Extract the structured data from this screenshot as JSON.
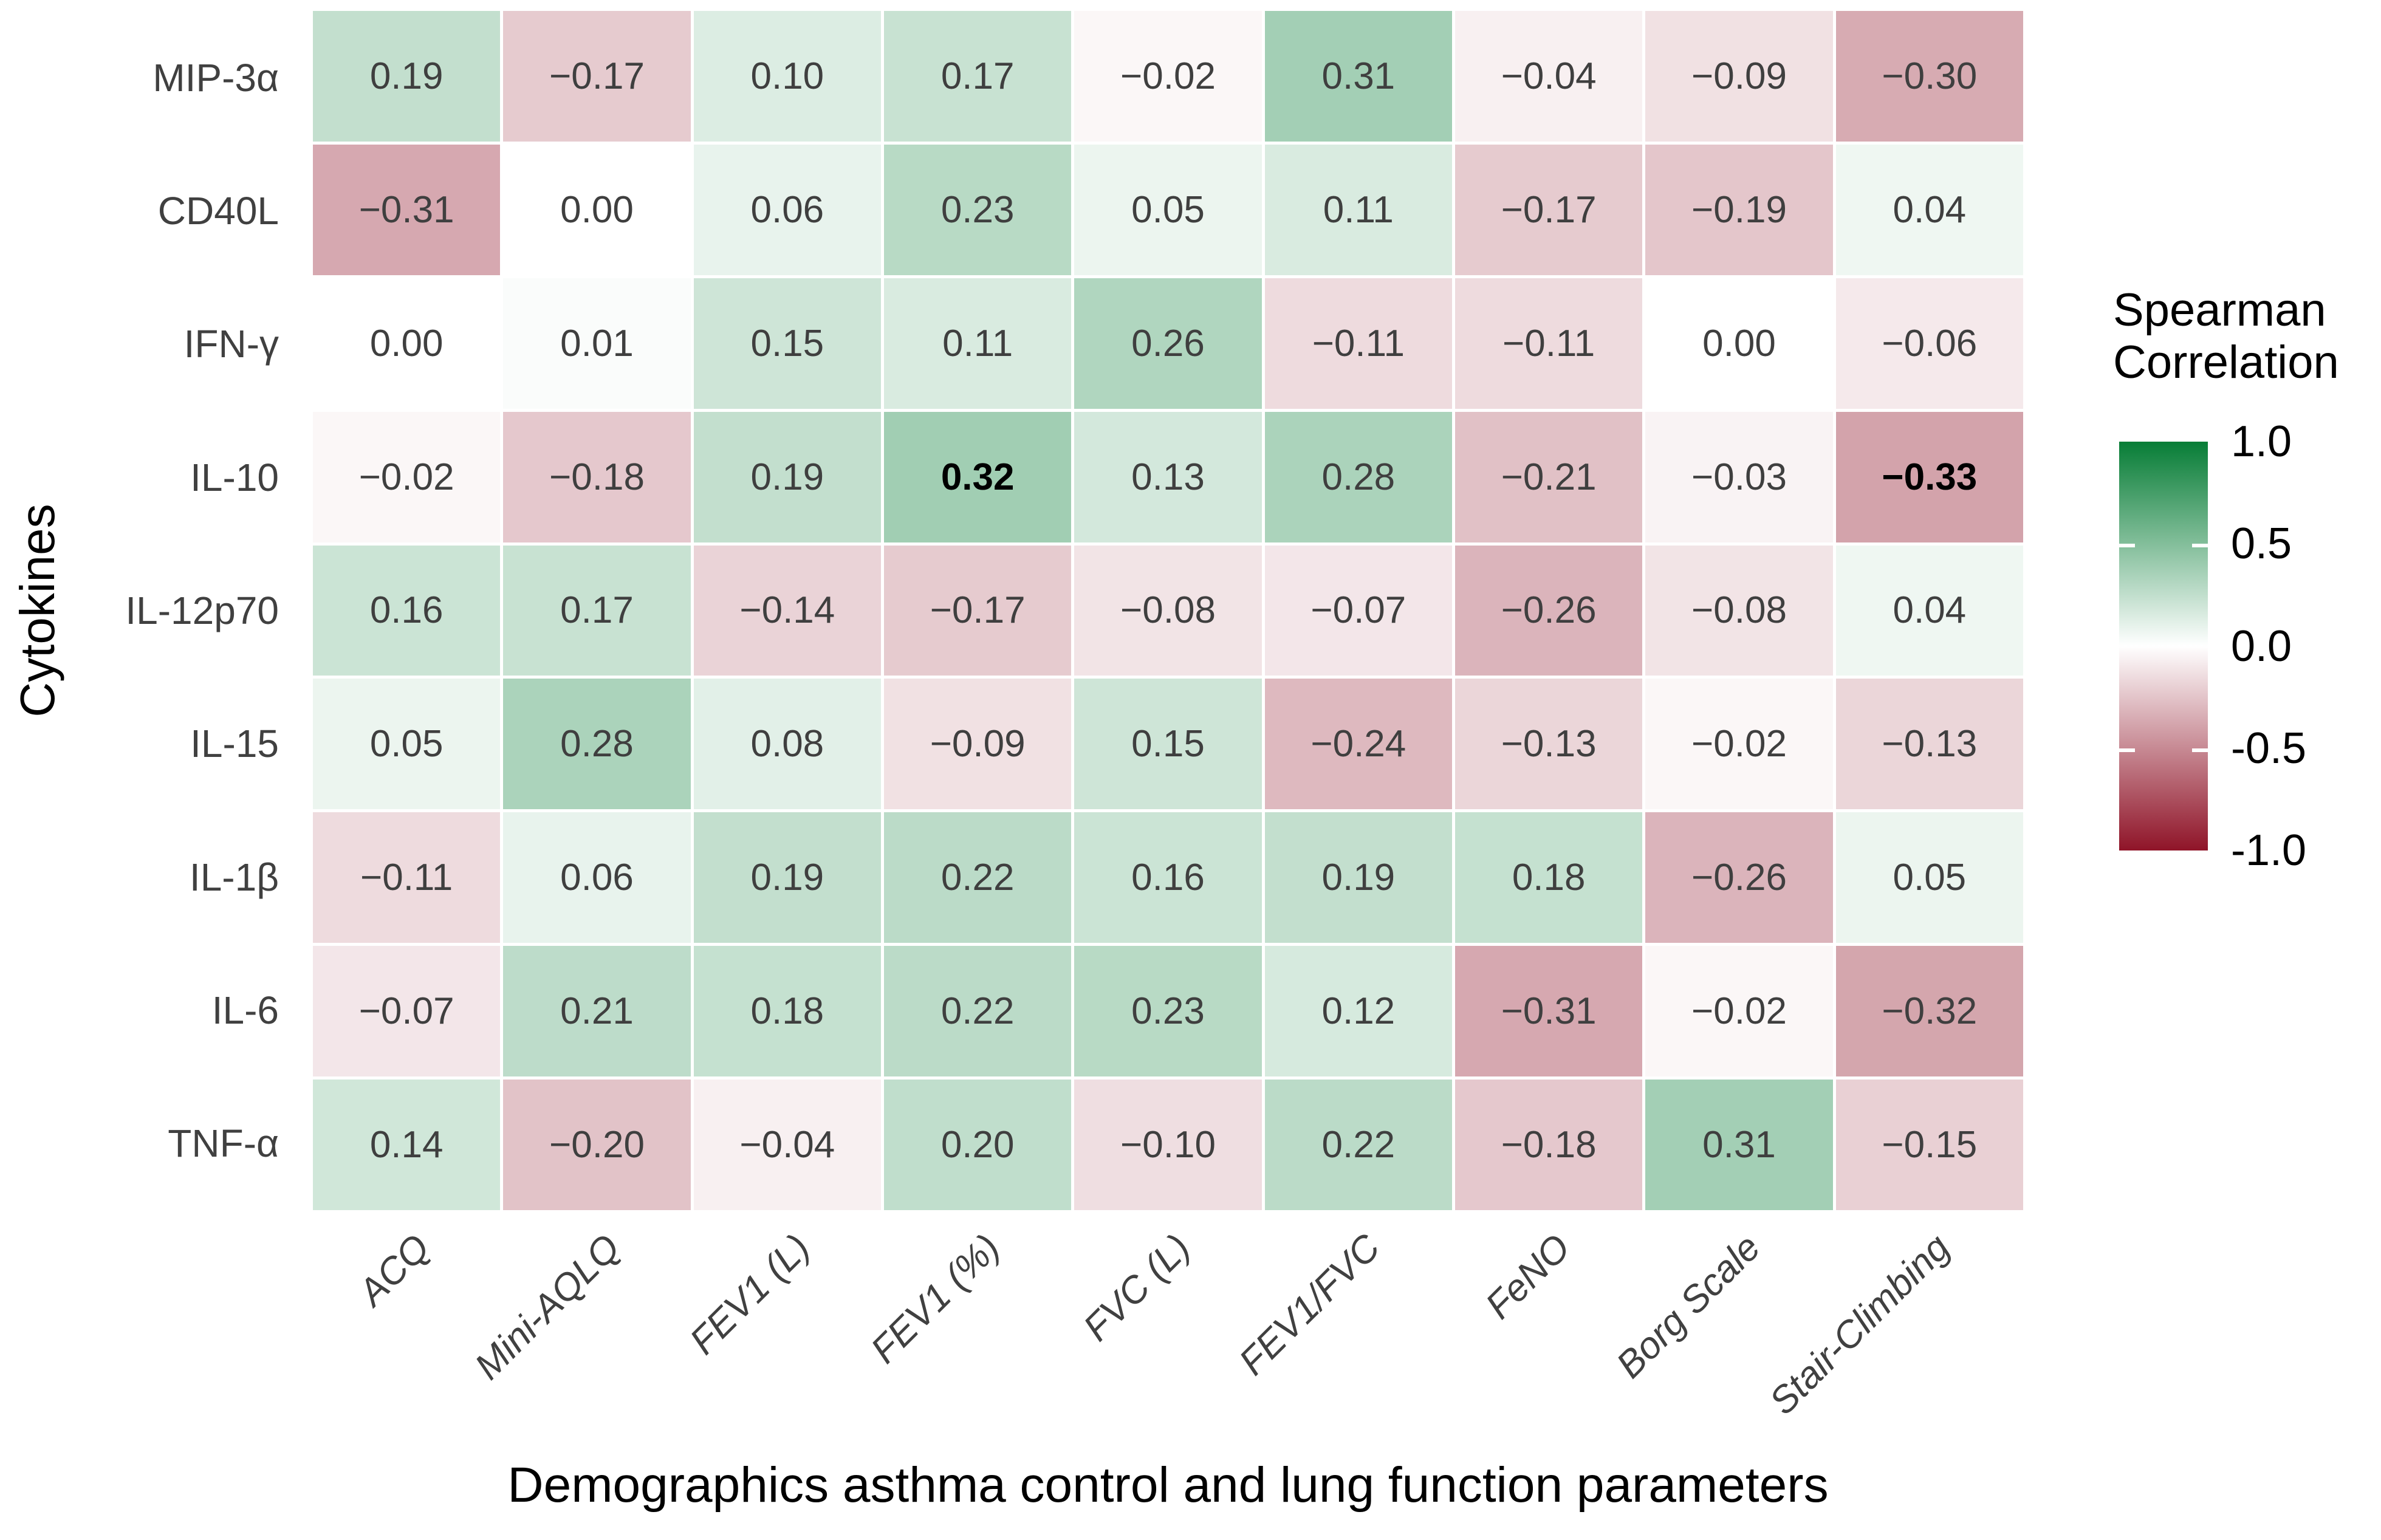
{
  "figure": {
    "x_axis_title": "Demographics asthma control and lung function parameters",
    "y_axis_title": "Cytokines"
  },
  "legend": {
    "title": "Spearman\nCorrelation",
    "tick_labels": [
      "1.0",
      "0.5",
      "0.0",
      "-0.5",
      "-1.0"
    ]
  },
  "colors": {
    "high_green": "#077d36",
    "low_red": "#8f1428",
    "mid_white": "#ffffff",
    "value_text": "#3f3f3f",
    "label_text": "#404040",
    "title_text": "#000000"
  },
  "chart_data": {
    "type": "heatmap",
    "title": "",
    "xlabel": "Demographics asthma control and lung function parameters",
    "ylabel": "Cytokines",
    "legend_title": "Spearman Correlation",
    "legend_position": "right",
    "value_range": [
      -1.0,
      1.0
    ],
    "legend_ticks": [
      1.0,
      0.5,
      0.0,
      -0.5,
      -1.0
    ],
    "colorscale": {
      "high": "#077d36",
      "mid": "#ffffff",
      "low": "#8f1428"
    },
    "rows": [
      "MIP-3α",
      "CD40L",
      "IFN-γ",
      "IL-10",
      "IL-12p70",
      "IL-15",
      "IL-1β",
      "IL-6",
      "TNF-α"
    ],
    "columns": [
      "ACQ",
      "Mini-AQLQ",
      "FEV1 (L)",
      "FEV1 (%)",
      "FVC (L)",
      "FEV1/FVC",
      "FeNO",
      "Borg Scale",
      "Stair-Climbing"
    ],
    "values": [
      [
        0.19,
        -0.17,
        0.1,
        0.17,
        -0.02,
        0.31,
        -0.04,
        -0.09,
        -0.3
      ],
      [
        -0.31,
        0.0,
        0.06,
        0.23,
        0.05,
        0.11,
        -0.17,
        -0.19,
        0.04
      ],
      [
        0.0,
        0.01,
        0.15,
        0.11,
        0.26,
        -0.11,
        -0.11,
        0.0,
        -0.06
      ],
      [
        -0.02,
        -0.18,
        0.19,
        0.32,
        0.13,
        0.28,
        -0.21,
        -0.03,
        -0.33
      ],
      [
        0.16,
        0.17,
        -0.14,
        -0.17,
        -0.08,
        -0.07,
        -0.26,
        -0.08,
        0.04
      ],
      [
        0.05,
        0.28,
        0.08,
        -0.09,
        0.15,
        -0.24,
        -0.13,
        -0.02,
        -0.13
      ],
      [
        -0.11,
        0.06,
        0.19,
        0.22,
        0.16,
        0.19,
        0.18,
        -0.26,
        0.05
      ],
      [
        -0.07,
        0.21,
        0.18,
        0.22,
        0.23,
        0.12,
        -0.31,
        -0.02,
        -0.32
      ],
      [
        0.14,
        -0.2,
        -0.04,
        0.2,
        -0.1,
        0.22,
        -0.18,
        0.31,
        -0.15
      ]
    ],
    "bold_cells": [
      [
        3,
        3
      ],
      [
        3,
        8
      ]
    ]
  }
}
